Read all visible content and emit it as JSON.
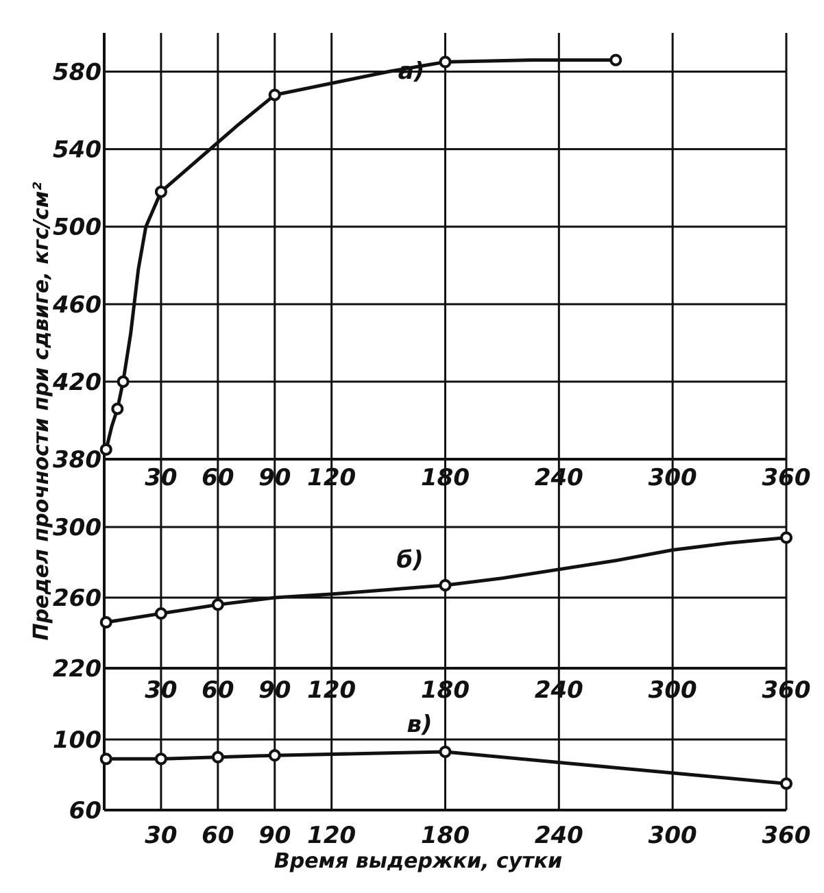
{
  "chart_data": {
    "type": "line",
    "xlabel": "Время выдержки, сутки",
    "ylabel": "Предел прочности при сдвиге, кгс/см²",
    "grid": true,
    "xlim": [
      0,
      360
    ],
    "x_ticks": [
      "30",
      "60",
      "90",
      "120",
      "180",
      "240",
      "300",
      "360"
    ],
    "x_tick_values": [
      30,
      60,
      90,
      120,
      180,
      240,
      300,
      360
    ],
    "panels": [
      {
        "name": "а)",
        "ylim": [
          380,
          600
        ],
        "y_ticks": [
          "380",
          "420",
          "460",
          "500",
          "540",
          "580"
        ],
        "y_tick_values": [
          380,
          420,
          460,
          500,
          540,
          580
        ],
        "series": [
          {
            "name": "а)",
            "markers": [
              {
                "x": 1,
                "y": 385
              },
              {
                "x": 7,
                "y": 406
              },
              {
                "x": 10,
                "y": 420
              },
              {
                "x": 30,
                "y": 518
              },
              {
                "x": 90,
                "y": 568
              },
              {
                "x": 180,
                "y": 585
              },
              {
                "x": 270,
                "y": 586
              }
            ],
            "curve": [
              {
                "x": 1,
                "y": 385
              },
              {
                "x": 4,
                "y": 397
              },
              {
                "x": 7,
                "y": 406
              },
              {
                "x": 10,
                "y": 420
              },
              {
                "x": 14,
                "y": 445
              },
              {
                "x": 18,
                "y": 478
              },
              {
                "x": 22,
                "y": 500
              },
              {
                "x": 30,
                "y": 518
              },
              {
                "x": 50,
                "y": 535
              },
              {
                "x": 70,
                "y": 552
              },
              {
                "x": 90,
                "y": 568
              },
              {
                "x": 120,
                "y": 574
              },
              {
                "x": 150,
                "y": 580
              },
              {
                "x": 180,
                "y": 585
              },
              {
                "x": 225,
                "y": 586
              },
              {
                "x": 270,
                "y": 586
              }
            ]
          }
        ]
      },
      {
        "name": "б)",
        "ylim": [
          220,
          300
        ],
        "y_ticks": [
          "220",
          "260",
          "300"
        ],
        "y_tick_values": [
          220,
          260,
          300
        ],
        "series": [
          {
            "name": "б)",
            "markers": [
              {
                "x": 1,
                "y": 246
              },
              {
                "x": 30,
                "y": 251
              },
              {
                "x": 60,
                "y": 256
              },
              {
                "x": 180,
                "y": 267
              },
              {
                "x": 360,
                "y": 294
              }
            ],
            "curve": [
              {
                "x": 1,
                "y": 246
              },
              {
                "x": 30,
                "y": 251
              },
              {
                "x": 60,
                "y": 256
              },
              {
                "x": 90,
                "y": 260
              },
              {
                "x": 120,
                "y": 262
              },
              {
                "x": 180,
                "y": 267
              },
              {
                "x": 210,
                "y": 271
              },
              {
                "x": 240,
                "y": 276
              },
              {
                "x": 270,
                "y": 281
              },
              {
                "x": 300,
                "y": 287
              },
              {
                "x": 330,
                "y": 291
              },
              {
                "x": 360,
                "y": 294
              }
            ]
          }
        ]
      },
      {
        "name": "в)",
        "ylim": [
          60,
          100
        ],
        "y_ticks": [
          "60",
          "100"
        ],
        "y_tick_values": [
          60,
          100
        ],
        "series": [
          {
            "name": "в)",
            "markers": [
              {
                "x": 1,
                "y": 89
              },
              {
                "x": 30,
                "y": 89
              },
              {
                "x": 60,
                "y": 90
              },
              {
                "x": 90,
                "y": 91
              },
              {
                "x": 180,
                "y": 93
              },
              {
                "x": 360,
                "y": 75
              }
            ],
            "curve": [
              {
                "x": 1,
                "y": 89
              },
              {
                "x": 30,
                "y": 89
              },
              {
                "x": 60,
                "y": 90
              },
              {
                "x": 90,
                "y": 91
              },
              {
                "x": 180,
                "y": 93
              },
              {
                "x": 240,
                "y": 87
              },
              {
                "x": 300,
                "y": 81
              },
              {
                "x": 360,
                "y": 75
              }
            ]
          }
        ]
      }
    ]
  }
}
